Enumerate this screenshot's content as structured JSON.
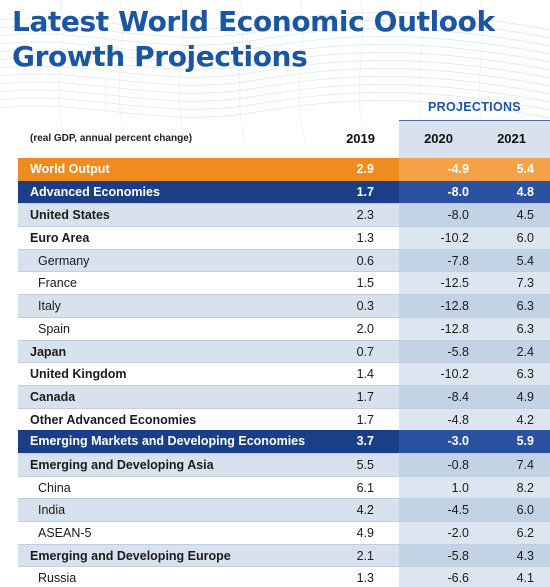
{
  "title": {
    "line1": "Latest World Economic Outlook",
    "line2": "Growth Projections"
  },
  "header": {
    "projections_label": "PROJECTIONS",
    "unit_note": "(real GDP, annual percent change)",
    "years": [
      "2019",
      "2020",
      "2021"
    ]
  },
  "colors": {
    "title_blue": "#1b56a2",
    "world_output_orange": "#f08b1f",
    "group_navy": "#1b3f86",
    "row_shade": "#d7e2ee"
  },
  "rows": [
    {
      "label": "World Output",
      "v2019": "2.9",
      "v2020": "-4.9",
      "v2021": "5.4"
    },
    {
      "label": "Advanced Economies",
      "v2019": "1.7",
      "v2020": "-8.0",
      "v2021": "4.8"
    },
    {
      "label": "United States",
      "v2019": "2.3",
      "v2020": "-8.0",
      "v2021": "4.5"
    },
    {
      "label": "Euro Area",
      "v2019": "1.3",
      "v2020": "-10.2",
      "v2021": "6.0"
    },
    {
      "label": "Germany",
      "v2019": "0.6",
      "v2020": "-7.8",
      "v2021": "5.4"
    },
    {
      "label": "France",
      "v2019": "1.5",
      "v2020": "-12.5",
      "v2021": "7.3"
    },
    {
      "label": "Italy",
      "v2019": "0.3",
      "v2020": "-12.8",
      "v2021": "6.3"
    },
    {
      "label": "Spain",
      "v2019": "2.0",
      "v2020": "-12.8",
      "v2021": "6.3"
    },
    {
      "label": "Japan",
      "v2019": "0.7",
      "v2020": "-5.8",
      "v2021": "2.4"
    },
    {
      "label": "United Kingdom",
      "v2019": "1.4",
      "v2020": "-10.2",
      "v2021": "6.3"
    },
    {
      "label": "Canada",
      "v2019": "1.7",
      "v2020": "-8.4",
      "v2021": "4.9"
    },
    {
      "label": "Other Advanced Economies",
      "v2019": "1.7",
      "v2020": "-4.8",
      "v2021": "4.2"
    },
    {
      "label": "Emerging Markets and Developing Economies",
      "v2019": "3.7",
      "v2020": "-3.0",
      "v2021": "5.9"
    },
    {
      "label": "Emerging and Developing Asia",
      "v2019": "5.5",
      "v2020": "-0.8",
      "v2021": "7.4"
    },
    {
      "label": "China",
      "v2019": "6.1",
      "v2020": "1.0",
      "v2021": "8.2"
    },
    {
      "label": "India",
      "v2019": "4.2",
      "v2020": "-4.5",
      "v2021": "6.0"
    },
    {
      "label": "ASEAN-5",
      "v2019": "4.9",
      "v2020": "-2.0",
      "v2021": "6.2"
    },
    {
      "label": "Emerging and Developing Europe",
      "v2019": "2.1",
      "v2020": "-5.8",
      "v2021": "4.3"
    },
    {
      "label": "Russia",
      "v2019": "1.3",
      "v2020": "-6.6",
      "v2021": "4.1"
    }
  ]
}
